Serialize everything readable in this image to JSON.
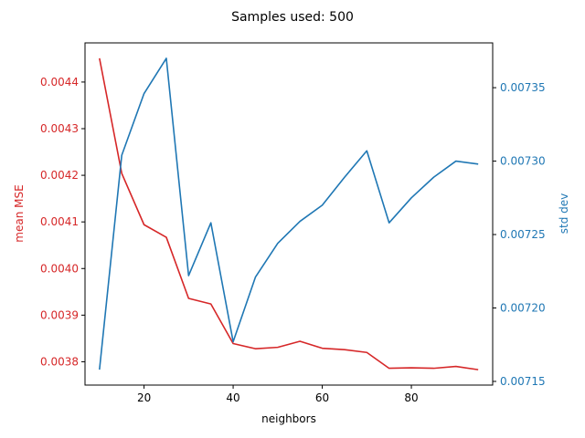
{
  "chart_data": {
    "type": "line",
    "title": "Samples used: 500",
    "xlabel": "neighbors",
    "x": [
      10,
      15,
      20,
      25,
      30,
      35,
      40,
      45,
      50,
      55,
      60,
      65,
      70,
      75,
      80,
      85,
      90,
      95
    ],
    "xlim": [
      6.75,
      98.25
    ],
    "xticks": [
      20,
      40,
      60,
      80
    ],
    "grid": false,
    "series": [
      {
        "name": "mean MSE",
        "axis": "left",
        "color": "#d62728",
        "values": [
          0.004451,
          0.004204,
          0.004094,
          0.004067,
          0.003936,
          0.003924,
          0.003839,
          0.003828,
          0.003831,
          0.003844,
          0.003829,
          0.003826,
          0.00382,
          0.003786,
          0.003787,
          0.003786,
          0.00379,
          0.003783
        ]
      },
      {
        "name": "std dev",
        "axis": "right",
        "color": "#1f77b4",
        "values": [
          0.007158,
          0.007304,
          0.007346,
          0.00737,
          0.007222,
          0.007258,
          0.007177,
          0.007221,
          0.007244,
          0.007259,
          0.00727,
          0.007289,
          0.007307,
          0.007258,
          0.007275,
          0.007289,
          0.0073,
          0.007298
        ]
      }
    ],
    "left_axis": {
      "label": "mean MSE",
      "color": "#d62728",
      "ylim": [
        0.00375,
        0.004484
      ],
      "ticks": [
        0.0038,
        0.0039,
        0.004,
        0.0041,
        0.0042,
        0.0043,
        0.0044
      ],
      "tick_labels": [
        "0.0038",
        "0.0039",
        "0.0040",
        "0.0041",
        "0.0042",
        "0.0043",
        "0.0044"
      ]
    },
    "right_axis": {
      "label": "std dev",
      "color": "#1f77b4",
      "ylim": [
        0.0071475,
        0.0073805
      ],
      "ticks": [
        0.00715,
        0.0072,
        0.00725,
        0.0073,
        0.00735
      ],
      "tick_labels": [
        "0.00715",
        "0.00720",
        "0.00725",
        "0.00730",
        "0.00735"
      ]
    }
  }
}
